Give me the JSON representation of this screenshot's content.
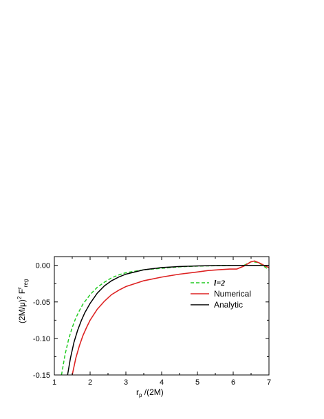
{
  "chart_data": {
    "type": "line",
    "xlabel": {
      "main": "r",
      "sub": "p",
      "rest": "/(2M)"
    },
    "ylabel": {
      "main": "(2M/μ)",
      "sup": "2",
      "rest": " F",
      "sup2": "r",
      "sub": "reg"
    },
    "xlim": [
      1,
      7
    ],
    "ylim": [
      -0.15,
      0.012
    ],
    "x_ticks": [
      1,
      2,
      3,
      4,
      5,
      6,
      7
    ],
    "x_tick_labels": [
      "1",
      "2",
      "3",
      "4",
      "5",
      "6",
      "7"
    ],
    "y_ticks": [
      0.0,
      -0.05,
      -0.1,
      -0.15
    ],
    "y_tick_labels": [
      "0.00",
      "-0.05",
      "-0.10",
      "-0.15"
    ],
    "grid": false,
    "legend_position": "right",
    "series": [
      {
        "name": "l=2",
        "color": "#22cc22",
        "style": "dashed",
        "points": [
          [
            1.2,
            -0.15
          ],
          [
            1.3,
            -0.122
          ],
          [
            1.4,
            -0.101
          ],
          [
            1.5,
            -0.085
          ],
          [
            1.6,
            -0.072
          ],
          [
            1.7,
            -0.062
          ],
          [
            1.8,
            -0.053
          ],
          [
            2.0,
            -0.04
          ],
          [
            2.2,
            -0.03
          ],
          [
            2.4,
            -0.023
          ],
          [
            2.6,
            -0.017
          ],
          [
            2.8,
            -0.013
          ],
          [
            3.0,
            -0.01
          ],
          [
            3.5,
            -0.006
          ],
          [
            4.0,
            -0.004
          ],
          [
            4.5,
            -0.002
          ],
          [
            5.0,
            -0.001
          ],
          [
            5.5,
            -0.0005
          ],
          [
            6.0,
            0.0
          ],
          [
            6.3,
            0.0
          ],
          [
            6.5,
            0.005
          ],
          [
            6.7,
            0.004
          ],
          [
            6.85,
            -0.001
          ],
          [
            7.0,
            -0.006
          ]
        ]
      },
      {
        "name": "Numerical",
        "color": "#dd2222",
        "style": "solid",
        "points": [
          [
            1.5,
            -0.15
          ],
          [
            1.6,
            -0.127
          ],
          [
            1.7,
            -0.11
          ],
          [
            1.8,
            -0.096
          ],
          [
            1.9,
            -0.085
          ],
          [
            2.0,
            -0.075
          ],
          [
            2.2,
            -0.06
          ],
          [
            2.4,
            -0.049
          ],
          [
            2.6,
            -0.04
          ],
          [
            2.8,
            -0.034
          ],
          [
            3.0,
            -0.029
          ],
          [
            3.5,
            -0.021
          ],
          [
            4.0,
            -0.016
          ],
          [
            4.5,
            -0.012
          ],
          [
            5.0,
            -0.009
          ],
          [
            5.3,
            -0.007
          ],
          [
            5.6,
            -0.006
          ],
          [
            5.9,
            -0.005
          ],
          [
            6.1,
            -0.005
          ],
          [
            6.3,
            -0.001
          ],
          [
            6.5,
            0.005
          ],
          [
            6.6,
            0.006
          ],
          [
            6.75,
            0.003
          ],
          [
            6.9,
            -0.001
          ],
          [
            7.0,
            -0.003
          ]
        ]
      },
      {
        "name": "Analytic",
        "color": "#000000",
        "style": "solid",
        "points": [
          [
            1.37,
            -0.15
          ],
          [
            1.45,
            -0.127
          ],
          [
            1.55,
            -0.105
          ],
          [
            1.65,
            -0.089
          ],
          [
            1.75,
            -0.076
          ],
          [
            1.85,
            -0.065
          ],
          [
            2.0,
            -0.052
          ],
          [
            2.2,
            -0.038
          ],
          [
            2.4,
            -0.028
          ],
          [
            2.6,
            -0.021
          ],
          [
            2.8,
            -0.016
          ],
          [
            3.0,
            -0.012
          ],
          [
            3.5,
            -0.006
          ],
          [
            4.0,
            -0.003
          ],
          [
            4.5,
            -0.0015
          ],
          [
            5.0,
            -0.0007
          ],
          [
            5.5,
            -0.0003
          ],
          [
            6.0,
            0.0
          ],
          [
            6.5,
            0.0
          ],
          [
            7.0,
            0.0
          ]
        ]
      }
    ]
  }
}
